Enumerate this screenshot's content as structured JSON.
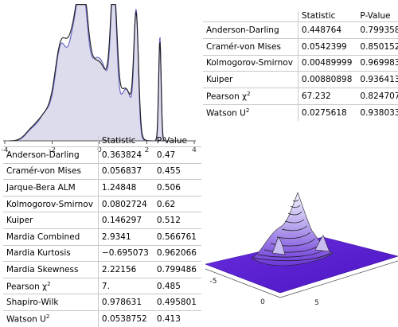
{
  "density_plot": {
    "x_ticks": [
      "-4",
      "-2",
      "0",
      "2",
      "4"
    ],
    "colors": {
      "fill": "#dcdcec",
      "data_curve": "#6a6ac8",
      "fit_curve": "#1e1e1e"
    }
  },
  "table_top": {
    "headers": [
      "",
      "Statistic",
      "P-Value"
    ],
    "rows": [
      {
        "name": "Anderson-Darling",
        "statistic": "0.448764",
        "pvalue": "0.799358"
      },
      {
        "name": "Cramér-von Mises",
        "statistic": "0.0542399",
        "pvalue": "0.850152"
      },
      {
        "name": "Kolmogorov-Smirnov",
        "statistic": "0.00489999",
        "pvalue": "0.969983"
      },
      {
        "name": "Kuiper",
        "statistic": "0.00880898",
        "pvalue": "0.936413"
      },
      {
        "name": "Pearson χ",
        "sup": "2",
        "statistic": "67.232",
        "pvalue": "0.824707"
      },
      {
        "name": "Watson U",
        "sup": "2",
        "statistic": "0.0275618",
        "pvalue": "0.938033"
      }
    ]
  },
  "table_bottom": {
    "headers": [
      "",
      "Statistic",
      "P-Value"
    ],
    "rows": [
      {
        "name": "Anderson-Darling",
        "statistic": "0.363824",
        "pvalue": "0.47"
      },
      {
        "name": "Cramér-von Mises",
        "statistic": "0.056837",
        "pvalue": "0.455"
      },
      {
        "name": "Jarque-Bera ALM",
        "statistic": "1.24848",
        "pvalue": "0.506"
      },
      {
        "name": "Kolmogorov-Smirnov",
        "statistic": "0.0802724",
        "pvalue": "0.62"
      },
      {
        "name": "Kuiper",
        "statistic": "0.146297",
        "pvalue": "0.512"
      },
      {
        "name": "Mardia Combined",
        "statistic": "2.9341",
        "pvalue": "0.566761"
      },
      {
        "name": "Mardia Kurtosis",
        "statistic": "−0.695073",
        "pvalue": "0.962066"
      },
      {
        "name": "Mardia Skewness",
        "statistic": "2.22156",
        "pvalue": "0.799486"
      },
      {
        "name": "Pearson χ",
        "sup": "2",
        "statistic": "7.",
        "pvalue": "0.485"
      },
      {
        "name": "Shapiro-Wilk",
        "statistic": "0.978631",
        "pvalue": "0.495801"
      },
      {
        "name": "Watson U",
        "sup": "2",
        "statistic": "0.0538752",
        "pvalue": "0.413"
      }
    ]
  },
  "surface_plot": {
    "axis_ticks": [
      "-5",
      "0",
      "5"
    ],
    "colors": {
      "base": "#5a1fd0",
      "peak_light": "#f2f2ff",
      "contour": "#111111"
    }
  }
}
